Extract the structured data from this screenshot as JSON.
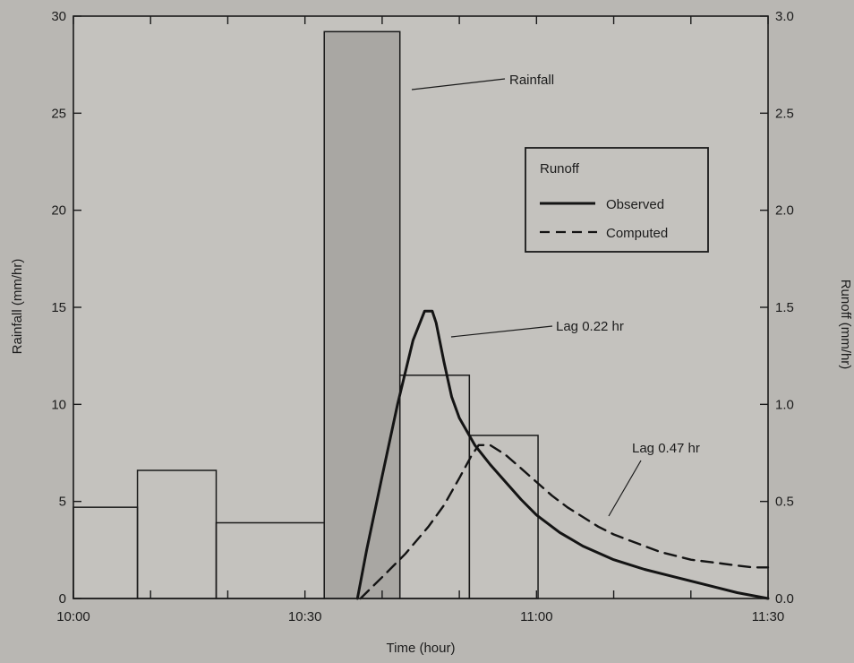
{
  "chart_data": {
    "type": "line",
    "xlabel": "Time (hour)",
    "ylabel_left": "Rainfall (mm/hr)",
    "ylabel_right": "Runoff (mm/hr)",
    "x_tick_labels": [
      "10:00",
      "10:30",
      "11:00",
      "11:30"
    ],
    "x_tick_values_min": [
      0,
      30,
      60,
      90
    ],
    "xlim_min": [
      0,
      90
    ],
    "y_left_ticks": [
      "0",
      "5",
      "10",
      "15",
      "20",
      "25",
      "30"
    ],
    "ylim_left": [
      0,
      30
    ],
    "y_right_ticks": [
      "0.0",
      "0.5",
      "1.0",
      "1.5",
      "2.0",
      "2.5",
      "3.0"
    ],
    "ylim_right": [
      0,
      3.0
    ],
    "rainfall": {
      "label": "Rainfall",
      "steps": [
        {
          "x0": 0,
          "x1": 8.3,
          "value": 4.7
        },
        {
          "x0": 8.3,
          "x1": 18.5,
          "value": 6.6
        },
        {
          "x0": 18.5,
          "x1": 32.5,
          "value": 3.9
        },
        {
          "x0": 32.5,
          "x1": 42.3,
          "value": 29.2
        },
        {
          "x0": 42.3,
          "x1": 51.3,
          "value": 11.5
        },
        {
          "x0": 51.3,
          "x1": 60.2,
          "value": 8.4
        }
      ]
    },
    "legend": {
      "title": "Runoff",
      "position": "upper-right",
      "entries": [
        {
          "label": "Observed",
          "style": "solid"
        },
        {
          "label": "Computed",
          "style": "dashed"
        }
      ]
    },
    "series": [
      {
        "name": "Observed",
        "style": "solid",
        "x": [
          36.8,
          38,
          40,
          42,
          44,
          45.5,
          46.5,
          47,
          48,
          49,
          50,
          52,
          54,
          56,
          58,
          60,
          63,
          66,
          70,
          74,
          78,
          82,
          86,
          90
        ],
        "y": [
          0.0,
          0.25,
          0.63,
          1.0,
          1.33,
          1.48,
          1.48,
          1.42,
          1.22,
          1.04,
          0.93,
          0.79,
          0.69,
          0.6,
          0.51,
          0.43,
          0.34,
          0.27,
          0.2,
          0.15,
          0.11,
          0.07,
          0.03,
          0.0
        ]
      },
      {
        "name": "Computed",
        "style": "dashed",
        "x": [
          37.2,
          40,
          43,
          46,
          48,
          50,
          51.5,
          52.5,
          54,
          56,
          58,
          60,
          62,
          64,
          66,
          68,
          70,
          72,
          74,
          76,
          78,
          80,
          82,
          84,
          86,
          88,
          90
        ],
        "y": [
          0.0,
          0.11,
          0.23,
          0.37,
          0.48,
          0.62,
          0.73,
          0.79,
          0.79,
          0.74,
          0.67,
          0.6,
          0.53,
          0.47,
          0.42,
          0.37,
          0.33,
          0.3,
          0.27,
          0.24,
          0.22,
          0.2,
          0.19,
          0.18,
          0.17,
          0.16,
          0.16
        ]
      }
    ],
    "annotations": [
      {
        "text": "Rainfall"
      },
      {
        "text": "Lag 0.22 hr"
      },
      {
        "text": "Lag 0.47 hr"
      }
    ]
  }
}
